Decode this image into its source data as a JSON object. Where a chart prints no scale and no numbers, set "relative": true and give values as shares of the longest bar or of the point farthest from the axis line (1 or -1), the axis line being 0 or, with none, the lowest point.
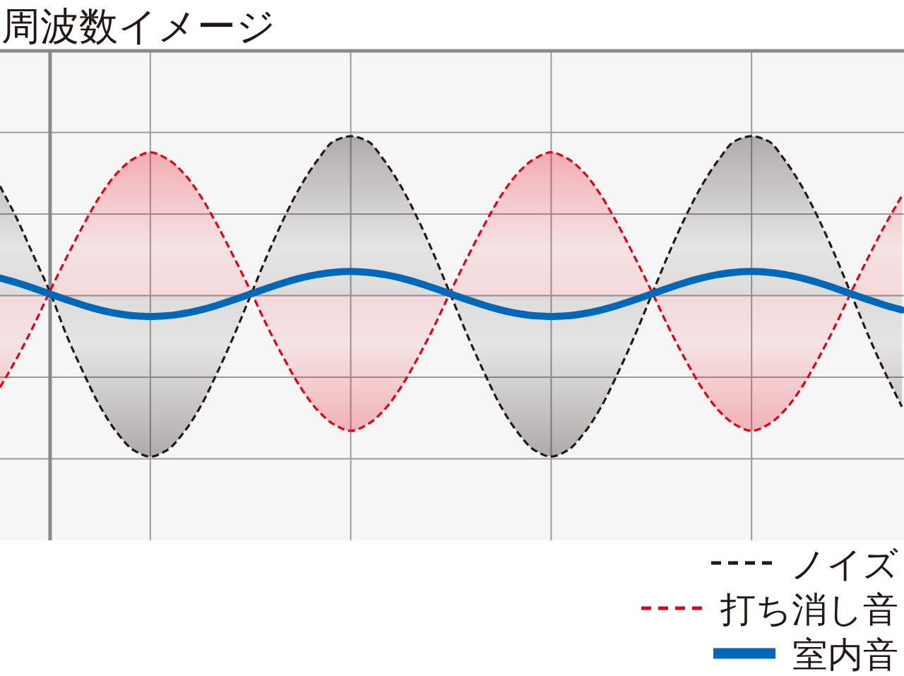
{
  "chart_data": {
    "type": "line",
    "title": "周波数イメージ",
    "relative": true,
    "grid": true,
    "legend": "bottom right",
    "categories": [
      null,
      null,
      null,
      null,
      null,
      null,
      null,
      null,
      null,
      null,
      null,
      null,
      null,
      null,
      null,
      null,
      null,
      null,
      null,
      null,
      null,
      null,
      null,
      null,
      null,
      null,
      null,
      null,
      null,
      null,
      null,
      null,
      null,
      null,
      null,
      null,
      null,
      null,
      null,
      null,
      null,
      null,
      null,
      null,
      null,
      null,
      null,
      null,
      null,
      null,
      null,
      null,
      null,
      null,
      null
    ],
    "series": [
      {
        "name": "ノイズ",
        "type": "area",
        "color": "#231815",
        "line_style": "dashed",
        "values": [
          0.68,
          0.48,
          0.25,
          0.02,
          -0.25,
          -0.48,
          -0.69,
          -0.85,
          -0.96,
          -1.0,
          -0.96,
          -0.85,
          -0.69,
          -0.48,
          -0.25,
          0.0,
          0.25,
          0.48,
          0.68,
          0.84,
          0.96,
          0.99,
          0.96,
          0.84,
          0.68,
          0.48,
          0.25,
          0.0,
          -0.25,
          -0.48,
          -0.69,
          -0.85,
          -0.96,
          -1.0,
          -0.96,
          -0.85,
          -0.69,
          -0.48,
          -0.25,
          0.0,
          0.25,
          0.48,
          0.68,
          0.84,
          0.96,
          0.99,
          0.96,
          0.84,
          0.68,
          0.48,
          0.25,
          0.0,
          -0.25,
          -0.48,
          -0.69
        ]
      },
      {
        "name": "打ち消し音",
        "type": "area",
        "color": "#e60012",
        "line_style": "dashed",
        "values": [
          -0.57,
          -0.39,
          -0.19,
          0.03,
          0.24,
          0.44,
          0.62,
          0.76,
          0.85,
          0.89,
          0.85,
          0.76,
          0.62,
          0.44,
          0.24,
          0.03,
          -0.19,
          -0.39,
          -0.57,
          -0.71,
          -0.8,
          -0.84,
          -0.8,
          -0.71,
          -0.57,
          -0.39,
          -0.19,
          0.03,
          0.24,
          0.44,
          0.62,
          0.76,
          0.85,
          0.89,
          0.85,
          0.76,
          0.62,
          0.44,
          0.24,
          0.03,
          -0.19,
          -0.39,
          -0.57,
          -0.71,
          -0.8,
          -0.84,
          -0.8,
          -0.71,
          -0.57,
          -0.39,
          -0.19,
          0.03,
          0.24,
          0.44,
          0.62
        ]
      },
      {
        "name": "室内音",
        "color": "#0068b7",
        "line_style": "solid",
        "values": [
          0.109,
          0.08,
          0.046,
          0.01,
          -0.026,
          -0.06,
          -0.089,
          -0.111,
          -0.125,
          -0.13,
          -0.125,
          -0.111,
          -0.089,
          -0.06,
          -0.026,
          0.01,
          0.046,
          0.08,
          0.109,
          0.131,
          0.145,
          0.15,
          0.145,
          0.131,
          0.109,
          0.08,
          0.046,
          0.01,
          -0.026,
          -0.06,
          -0.089,
          -0.111,
          -0.125,
          -0.13,
          -0.125,
          -0.111,
          -0.089,
          -0.06,
          -0.026,
          0.01,
          0.046,
          0.08,
          0.109,
          0.131,
          0.145,
          0.15,
          0.145,
          0.131,
          0.109,
          0.08,
          0.046,
          0.01,
          -0.026,
          -0.06,
          -0.089
        ]
      }
    ]
  }
}
